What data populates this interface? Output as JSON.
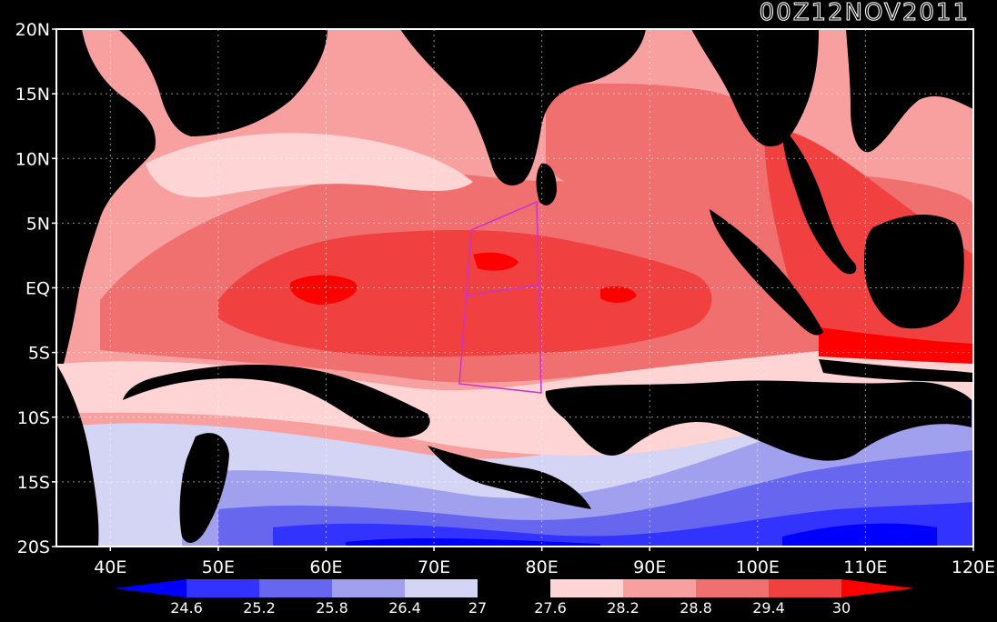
{
  "map": {
    "title": "00Z12NOV2011",
    "lon_ticks": [
      "40E",
      "50E",
      "60E",
      "70E",
      "80E",
      "90E",
      "100E",
      "110E",
      "120E"
    ],
    "lat_ticks": [
      "20N",
      "15N",
      "10N",
      "5N",
      "EQ",
      "5S",
      "10S",
      "15S",
      "20S"
    ],
    "lon_range": [
      35,
      120
    ],
    "lat_range": [
      -20,
      20
    ],
    "grid": true,
    "box_color": "#cc33cc"
  },
  "colorbar": {
    "levels": [
      "24.6",
      "25.2",
      "25.8",
      "26.4",
      "27",
      "27.6",
      "28.2",
      "28.8",
      "29.4",
      "30"
    ],
    "colors": [
      "#0000ff",
      "#3333ff",
      "#6666ee",
      "#a0a0ee",
      "#d4d4f4",
      "#000000",
      "#ffd4d4",
      "#f8a0a0",
      "#f07070",
      "#f04040",
      "#ff0000"
    ]
  }
}
